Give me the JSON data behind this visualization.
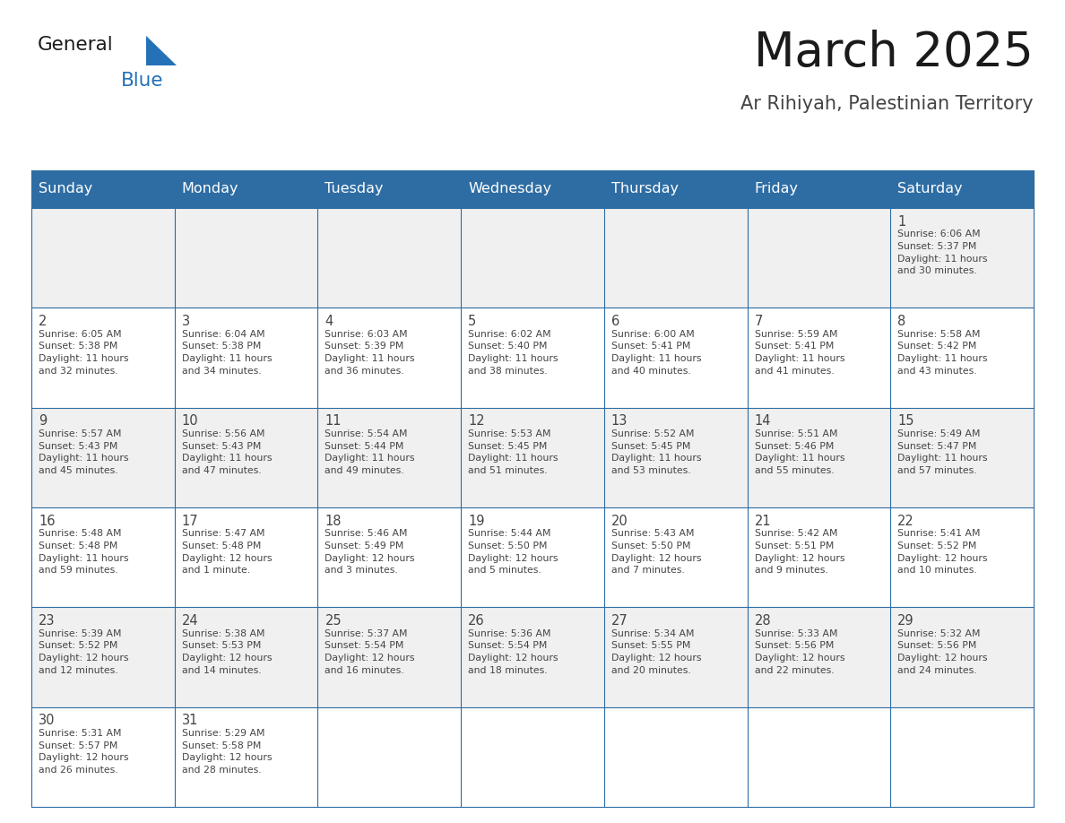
{
  "title": "March 2025",
  "subtitle": "Ar Rihiyah, Palestinian Territory",
  "header_bg": "#2E6DA4",
  "header_text": "#FFFFFF",
  "cell_bg_odd": "#F0F0F0",
  "cell_bg_even": "#FFFFFF",
  "cell_border": "#2E6DA4",
  "text_color": "#444444",
  "days_of_week": [
    "Sunday",
    "Monday",
    "Tuesday",
    "Wednesday",
    "Thursday",
    "Friday",
    "Saturday"
  ],
  "calendar": [
    [
      {
        "day": null,
        "info": null
      },
      {
        "day": null,
        "info": null
      },
      {
        "day": null,
        "info": null
      },
      {
        "day": null,
        "info": null
      },
      {
        "day": null,
        "info": null
      },
      {
        "day": null,
        "info": null
      },
      {
        "day": 1,
        "info": "Sunrise: 6:06 AM\nSunset: 5:37 PM\nDaylight: 11 hours\nand 30 minutes."
      }
    ],
    [
      {
        "day": 2,
        "info": "Sunrise: 6:05 AM\nSunset: 5:38 PM\nDaylight: 11 hours\nand 32 minutes."
      },
      {
        "day": 3,
        "info": "Sunrise: 6:04 AM\nSunset: 5:38 PM\nDaylight: 11 hours\nand 34 minutes."
      },
      {
        "day": 4,
        "info": "Sunrise: 6:03 AM\nSunset: 5:39 PM\nDaylight: 11 hours\nand 36 minutes."
      },
      {
        "day": 5,
        "info": "Sunrise: 6:02 AM\nSunset: 5:40 PM\nDaylight: 11 hours\nand 38 minutes."
      },
      {
        "day": 6,
        "info": "Sunrise: 6:00 AM\nSunset: 5:41 PM\nDaylight: 11 hours\nand 40 minutes."
      },
      {
        "day": 7,
        "info": "Sunrise: 5:59 AM\nSunset: 5:41 PM\nDaylight: 11 hours\nand 41 minutes."
      },
      {
        "day": 8,
        "info": "Sunrise: 5:58 AM\nSunset: 5:42 PM\nDaylight: 11 hours\nand 43 minutes."
      }
    ],
    [
      {
        "day": 9,
        "info": "Sunrise: 5:57 AM\nSunset: 5:43 PM\nDaylight: 11 hours\nand 45 minutes."
      },
      {
        "day": 10,
        "info": "Sunrise: 5:56 AM\nSunset: 5:43 PM\nDaylight: 11 hours\nand 47 minutes."
      },
      {
        "day": 11,
        "info": "Sunrise: 5:54 AM\nSunset: 5:44 PM\nDaylight: 11 hours\nand 49 minutes."
      },
      {
        "day": 12,
        "info": "Sunrise: 5:53 AM\nSunset: 5:45 PM\nDaylight: 11 hours\nand 51 minutes."
      },
      {
        "day": 13,
        "info": "Sunrise: 5:52 AM\nSunset: 5:45 PM\nDaylight: 11 hours\nand 53 minutes."
      },
      {
        "day": 14,
        "info": "Sunrise: 5:51 AM\nSunset: 5:46 PM\nDaylight: 11 hours\nand 55 minutes."
      },
      {
        "day": 15,
        "info": "Sunrise: 5:49 AM\nSunset: 5:47 PM\nDaylight: 11 hours\nand 57 minutes."
      }
    ],
    [
      {
        "day": 16,
        "info": "Sunrise: 5:48 AM\nSunset: 5:48 PM\nDaylight: 11 hours\nand 59 minutes."
      },
      {
        "day": 17,
        "info": "Sunrise: 5:47 AM\nSunset: 5:48 PM\nDaylight: 12 hours\nand 1 minute."
      },
      {
        "day": 18,
        "info": "Sunrise: 5:46 AM\nSunset: 5:49 PM\nDaylight: 12 hours\nand 3 minutes."
      },
      {
        "day": 19,
        "info": "Sunrise: 5:44 AM\nSunset: 5:50 PM\nDaylight: 12 hours\nand 5 minutes."
      },
      {
        "day": 20,
        "info": "Sunrise: 5:43 AM\nSunset: 5:50 PM\nDaylight: 12 hours\nand 7 minutes."
      },
      {
        "day": 21,
        "info": "Sunrise: 5:42 AM\nSunset: 5:51 PM\nDaylight: 12 hours\nand 9 minutes."
      },
      {
        "day": 22,
        "info": "Sunrise: 5:41 AM\nSunset: 5:52 PM\nDaylight: 12 hours\nand 10 minutes."
      }
    ],
    [
      {
        "day": 23,
        "info": "Sunrise: 5:39 AM\nSunset: 5:52 PM\nDaylight: 12 hours\nand 12 minutes."
      },
      {
        "day": 24,
        "info": "Sunrise: 5:38 AM\nSunset: 5:53 PM\nDaylight: 12 hours\nand 14 minutes."
      },
      {
        "day": 25,
        "info": "Sunrise: 5:37 AM\nSunset: 5:54 PM\nDaylight: 12 hours\nand 16 minutes."
      },
      {
        "day": 26,
        "info": "Sunrise: 5:36 AM\nSunset: 5:54 PM\nDaylight: 12 hours\nand 18 minutes."
      },
      {
        "day": 27,
        "info": "Sunrise: 5:34 AM\nSunset: 5:55 PM\nDaylight: 12 hours\nand 20 minutes."
      },
      {
        "day": 28,
        "info": "Sunrise: 5:33 AM\nSunset: 5:56 PM\nDaylight: 12 hours\nand 22 minutes."
      },
      {
        "day": 29,
        "info": "Sunrise: 5:32 AM\nSunset: 5:56 PM\nDaylight: 12 hours\nand 24 minutes."
      }
    ],
    [
      {
        "day": 30,
        "info": "Sunrise: 5:31 AM\nSunset: 5:57 PM\nDaylight: 12 hours\nand 26 minutes."
      },
      {
        "day": 31,
        "info": "Sunrise: 5:29 AM\nSunset: 5:58 PM\nDaylight: 12 hours\nand 28 minutes."
      },
      {
        "day": null,
        "info": null
      },
      {
        "day": null,
        "info": null
      },
      {
        "day": null,
        "info": null
      },
      {
        "day": null,
        "info": null
      },
      {
        "day": null,
        "info": null
      }
    ]
  ],
  "logo_general_color": "#1a1a1a",
  "logo_blue_color": "#2471B8",
  "logo_triangle_color": "#2471B8",
  "title_color": "#1a1a1a",
  "subtitle_color": "#444444"
}
